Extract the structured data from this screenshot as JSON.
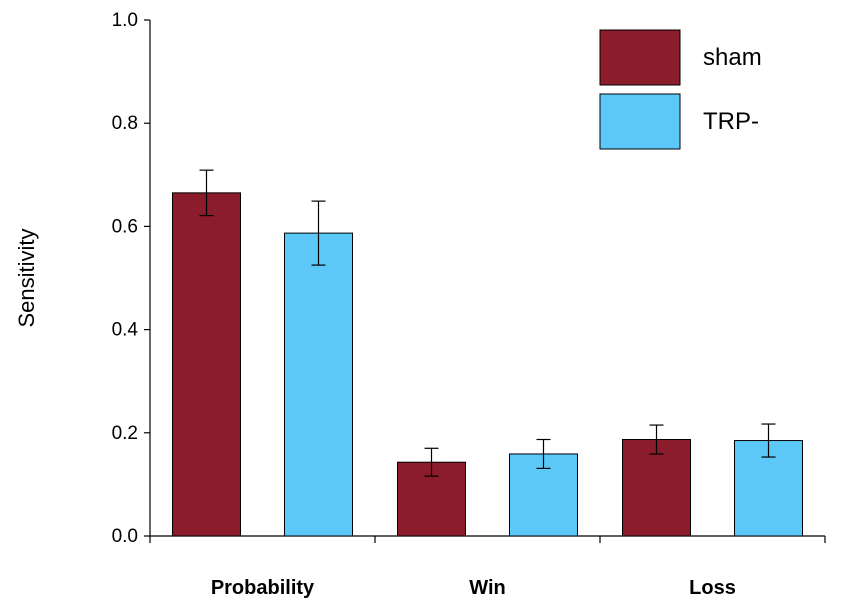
{
  "chart_data": {
    "type": "bar",
    "categories": [
      "Probability",
      "Win",
      "Loss"
    ],
    "series": [
      {
        "name": "sham",
        "color": "#8B1C2B",
        "values": [
          0.665,
          0.143,
          0.187
        ],
        "errors": [
          0.044,
          0.027,
          0.028
        ]
      },
      {
        "name": "TRP-",
        "color": "#5BC8F8",
        "values": [
          0.587,
          0.159,
          0.185
        ],
        "errors": [
          0.062,
          0.028,
          0.032
        ]
      }
    ],
    "title": "",
    "xlabel": "",
    "ylabel": "Sensitivity",
    "ylim": [
      0.0,
      1.0
    ],
    "yticks": [
      "0.0",
      "0.2",
      "0.4",
      "0.6",
      "0.8",
      "1.0"
    ],
    "grid": false,
    "legend": "top-right"
  }
}
